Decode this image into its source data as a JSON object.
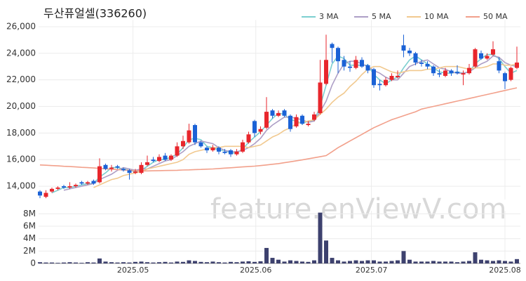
{
  "chart_data": {
    "type": "candlestick",
    "title": "두산퓨얼셀(336260)",
    "watermark": "feature.enViewV.com",
    "up_color": "#e8262c",
    "down_color": "#1b62d6",
    "volume_color": "#3d416e",
    "grid": true,
    "ylim": [
      13000,
      26500
    ],
    "yticks": [
      {
        "value": 14000,
        "label": "14,000"
      },
      {
        "value": 16000,
        "label": "16,000"
      },
      {
        "value": 18000,
        "label": "18,000"
      },
      {
        "value": 20000,
        "label": "20,000"
      },
      {
        "value": 22000,
        "label": "22,000"
      },
      {
        "value": 24000,
        "label": "24,000"
      },
      {
        "value": 26000,
        "label": "26,000"
      }
    ],
    "volume_ylim": [
      0,
      8500000
    ],
    "volume_yticks": [
      0,
      {
        "value": 2000000,
        "label": "2M"
      },
      {
        "value": 4000000,
        "label": "4M"
      },
      {
        "value": 6000000,
        "label": "6M"
      },
      {
        "value": 8000000,
        "label": "8M"
      }
    ],
    "xticks": [
      {
        "value": 15.6,
        "label": "2025.05"
      },
      {
        "value": 36.2,
        "label": "2025.06"
      },
      {
        "value": 55.6,
        "label": "2025.07"
      },
      {
        "value": 78,
        "label": "2025.08"
      }
    ],
    "ohlc": [
      [
        13600,
        13700,
        13100,
        13300
      ],
      [
        13200,
        13700,
        13100,
        13500
      ],
      [
        13600,
        13900,
        13500,
        13800
      ],
      [
        13800,
        14000,
        13700,
        13900
      ],
      [
        14000,
        14100,
        13800,
        13900
      ],
      [
        13900,
        14300,
        13800,
        14000
      ],
      [
        14000,
        14200,
        13900,
        14100
      ],
      [
        14300,
        14400,
        14100,
        14200
      ],
      [
        14200,
        14400,
        14100,
        14300
      ],
      [
        14400,
        14500,
        14100,
        14200
      ],
      [
        14300,
        16100,
        14200,
        15500
      ],
      [
        15600,
        15700,
        15200,
        15300
      ],
      [
        15300,
        15600,
        15100,
        15400
      ],
      [
        15500,
        15600,
        15300,
        15400
      ],
      [
        15300,
        15400,
        15100,
        15200
      ],
      [
        15200,
        15300,
        14500,
        15000
      ],
      [
        15000,
        15300,
        14900,
        15100
      ],
      [
        15000,
        15800,
        14900,
        15600
      ],
      [
        15600,
        16300,
        15500,
        15800
      ],
      [
        16000,
        16200,
        15800,
        15900
      ],
      [
        15900,
        16400,
        15800,
        16200
      ],
      [
        16300,
        16500,
        15900,
        16000
      ],
      [
        16000,
        16400,
        15900,
        16300
      ],
      [
        16300,
        17300,
        16200,
        17000
      ],
      [
        17000,
        17800,
        16800,
        17400
      ],
      [
        17300,
        18700,
        17200,
        18200
      ],
      [
        18600,
        18700,
        17100,
        17300
      ],
      [
        17300,
        17400,
        16900,
        17000
      ],
      [
        16900,
        17000,
        16500,
        16700
      ],
      [
        16700,
        17100,
        16600,
        16900
      ],
      [
        16900,
        17000,
        16400,
        16600
      ],
      [
        16600,
        16800,
        16400,
        16500
      ],
      [
        16700,
        16800,
        16200,
        16400
      ],
      [
        16400,
        16800,
        16300,
        16600
      ],
      [
        16600,
        17500,
        16500,
        17300
      ],
      [
        17300,
        18100,
        17200,
        17900
      ],
      [
        18900,
        19000,
        17700,
        18000
      ],
      [
        18100,
        18500,
        17900,
        18300
      ],
      [
        18400,
        20700,
        18300,
        19600
      ],
      [
        19700,
        19800,
        19100,
        19300
      ],
      [
        19300,
        19700,
        19200,
        19500
      ],
      [
        19700,
        19800,
        19200,
        19300
      ],
      [
        19300,
        19400,
        18100,
        18300
      ],
      [
        18500,
        19400,
        18400,
        19200
      ],
      [
        19300,
        19400,
        18600,
        18700
      ],
      [
        18600,
        18900,
        18500,
        18700
      ],
      [
        19000,
        19600,
        18900,
        19400
      ],
      [
        19500,
        23500,
        19400,
        21800
      ],
      [
        21700,
        25400,
        21600,
        23500
      ],
      [
        24700,
        24800,
        23300,
        24400
      ],
      [
        24400,
        24500,
        22500,
        23400
      ],
      [
        23500,
        23800,
        22700,
        23000
      ],
      [
        23000,
        23400,
        22600,
        22900
      ],
      [
        22900,
        23800,
        22800,
        23500
      ],
      [
        23500,
        23700,
        22900,
        23000
      ],
      [
        23100,
        23200,
        22500,
        22700
      ],
      [
        22800,
        22900,
        21400,
        21600
      ],
      [
        21700,
        22000,
        21200,
        21600
      ],
      [
        21600,
        22200,
        21500,
        22000
      ],
      [
        22000,
        22500,
        21900,
        22300
      ],
      [
        22200,
        22700,
        22100,
        22300
      ],
      [
        24600,
        25400,
        23700,
        24200
      ],
      [
        24200,
        24400,
        23800,
        24000
      ],
      [
        24000,
        24100,
        23100,
        23300
      ],
      [
        23300,
        23500,
        23000,
        23200
      ],
      [
        23200,
        23400,
        22800,
        23000
      ],
      [
        23000,
        23100,
        22300,
        22500
      ],
      [
        22500,
        22800,
        22200,
        22400
      ],
      [
        22300,
        22900,
        22200,
        22700
      ],
      [
        22700,
        22800,
        22300,
        22500
      ],
      [
        22600,
        23100,
        22400,
        22500
      ],
      [
        22400,
        22700,
        21600,
        22500
      ],
      [
        22500,
        23200,
        22400,
        22900
      ],
      [
        23000,
        24400,
        22900,
        24300
      ],
      [
        24000,
        24200,
        23500,
        23600
      ],
      [
        23600,
        24000,
        23500,
        23800
      ],
      [
        23900,
        24900,
        23800,
        24300
      ],
      [
        23400,
        23700,
        22500,
        22700
      ],
      [
        22500,
        22600,
        21300,
        21900
      ],
      [
        22000,
        23000,
        21900,
        22900
      ],
      [
        22900,
        24500,
        22800,
        23300
      ]
    ],
    "volume": [
      200000,
      150000,
      150000,
      100000,
      150000,
      200000,
      150000,
      100000,
      200000,
      150000,
      800000,
      300000,
      200000,
      150000,
      200000,
      150000,
      250000,
      300000,
      200000,
      150000,
      200000,
      250000,
      150000,
      300000,
      250000,
      500000,
      400000,
      250000,
      200000,
      300000,
      200000,
      150000,
      250000,
      200000,
      300000,
      350000,
      250000,
      350000,
      2500000,
      900000,
      600000,
      300000,
      500000,
      400000,
      300000,
      250000,
      500000,
      8200000,
      3700000,
      900000,
      500000,
      300000,
      400000,
      500000,
      400000,
      500000,
      500000,
      300000,
      300000,
      400000,
      500000,
      2000000,
      600000,
      300000,
      300000,
      300000,
      400000,
      300000,
      300000,
      300000,
      200000,
      300000,
      400000,
      1800000,
      600000,
      500000,
      400000,
      500000,
      400000,
      300000,
      700000
    ],
    "series": [
      {
        "name": "3 MA",
        "color": "#7ccfd0",
        "values": [
          null,
          null,
          13500,
          13700,
          13900,
          13900,
          14000,
          14100,
          14200,
          14200,
          14700,
          15000,
          15400,
          15400,
          15300,
          15200,
          15100,
          15200,
          15500,
          15800,
          16000,
          16000,
          16200,
          16400,
          16900,
          17500,
          17600,
          17500,
          17000,
          16900,
          16700,
          16700,
          16500,
          16500,
          16800,
          17300,
          17700,
          18100,
          18600,
          19100,
          19500,
          19400,
          19000,
          18900,
          18700,
          18900,
          18900,
          20000,
          21600,
          23200,
          23800,
          23600,
          23100,
          23100,
          23100,
          23100,
          22400,
          22000,
          21700,
          22000,
          22200,
          22900,
          23500,
          23800,
          23500,
          23200,
          22900,
          22600,
          22500,
          22500,
          22600,
          22500,
          22600,
          23200,
          23600,
          23900,
          23900,
          23600,
          23000,
          22500,
          22700
        ]
      },
      {
        "name": "5 MA",
        "color": "#ad9fc6",
        "values": [
          null,
          null,
          null,
          null,
          13700,
          13800,
          13900,
          14000,
          14100,
          14200,
          14500,
          14700,
          14900,
          15200,
          15400,
          15300,
          15200,
          15300,
          15300,
          15500,
          15700,
          15900,
          16000,
          16300,
          16600,
          17000,
          17200,
          17400,
          17300,
          17200,
          16900,
          16700,
          16600,
          16600,
          16700,
          16900,
          17200,
          17600,
          18200,
          18600,
          18900,
          19200,
          19200,
          19100,
          19000,
          18800,
          18900,
          19600,
          20400,
          21600,
          22500,
          23200,
          23400,
          23400,
          23200,
          23000,
          22700,
          22500,
          22200,
          22000,
          22000,
          22500,
          23000,
          23200,
          23400,
          23500,
          23200,
          22900,
          22800,
          22600,
          22500,
          22500,
          22600,
          22900,
          23200,
          23400,
          23800,
          23700,
          23300,
          23100,
          23000
        ]
      },
      {
        "name": "10 MA",
        "color": "#f1c98f",
        "values": [
          null,
          null,
          null,
          null,
          null,
          null,
          null,
          null,
          null,
          13900,
          14100,
          14300,
          14500,
          14600,
          14800,
          14900,
          15000,
          15100,
          15300,
          15400,
          15500,
          15600,
          15700,
          15800,
          16000,
          16400,
          16600,
          16700,
          16800,
          16900,
          16900,
          17000,
          17000,
          17000,
          17000,
          16900,
          17000,
          17100,
          17400,
          17700,
          17900,
          18200,
          18400,
          18700,
          18800,
          18900,
          19000,
          19400,
          19800,
          20300,
          20700,
          21000,
          21500,
          21900,
          22400,
          22800,
          23000,
          23000,
          22800,
          22600,
          22500,
          22600,
          22700,
          22700,
          22700,
          22800,
          22800,
          22900,
          23000,
          23000,
          23000,
          22900,
          22800,
          22900,
          22900,
          23000,
          23200,
          23200,
          23100,
          23100,
          23200
        ]
      },
      {
        "name": "50 MA",
        "color": "#f2a08b",
        "values": [
          15600,
          15580,
          15550,
          15530,
          15500,
          15480,
          15450,
          15420,
          15400,
          15370,
          15340,
          15310,
          15280,
          15250,
          15220,
          15200,
          15170,
          15150,
          15150,
          15160,
          15170,
          15180,
          15190,
          15200,
          15220,
          15230,
          15250,
          15260,
          15280,
          15300,
          15330,
          15360,
          15390,
          15420,
          15450,
          15480,
          15510,
          15550,
          15600,
          15650,
          15700,
          15770,
          15840,
          15910,
          15980,
          16060,
          16140,
          16220,
          16300,
          16600,
          16900,
          17150,
          17400,
          17650,
          17900,
          18150,
          18400,
          18600,
          18800,
          19000,
          19150,
          19300,
          19450,
          19600,
          19800,
          19900,
          20000,
          20100,
          20200,
          20300,
          20400,
          20500,
          20600,
          20700,
          20800,
          20900,
          21000,
          21100,
          21200,
          21300,
          21400
        ]
      }
    ]
  }
}
